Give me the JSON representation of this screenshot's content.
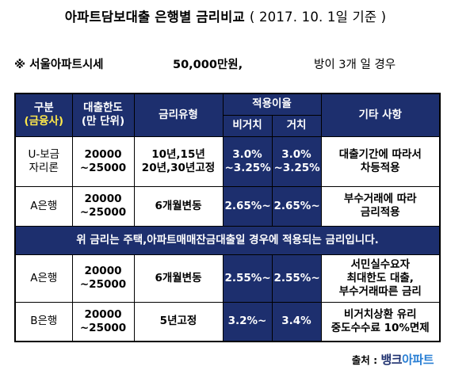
{
  "title": {
    "main": "아파트담보대출 은행별 금리비교",
    "date": "( 2017. 10. 1일 기준 )"
  },
  "note": {
    "region": "※  서울아파트시세",
    "price": "50,000만원,",
    "condition": "방이 3개 일 경우"
  },
  "table": {
    "headers": {
      "type_line1": "구분",
      "type_line2": "(금융사)",
      "limit_line1": "대출한도",
      "limit_line2": "(만 단위)",
      "rate_type": "금리유형",
      "applied_rate": "적용이율",
      "non_deferred": "비거치",
      "deferred": "거치",
      "other": "기타 사항"
    },
    "rows": [
      {
        "name_line1": "U-보금",
        "name_line2": "자리론",
        "limit_line1": "20000",
        "limit_line2": "~25000",
        "rate_line1": "10년,15년",
        "rate_line2": "20년,30년고정",
        "non_def_line1": "3.0%",
        "non_def_line2": "~3.25%",
        "def_line1": "3.0%",
        "def_line2": "~3.25%",
        "other_line1": "대출기간에 따라서",
        "other_line2": "차등적용"
      },
      {
        "name_line1": "A은행",
        "limit_line1": "20000",
        "limit_line2": "~25000",
        "rate_line1": "6개월변동",
        "non_def_line1": "2.65%~",
        "def_line1": "2.65%~",
        "other_line1": "부수거래에 따라",
        "other_line2": "금리적용"
      },
      {
        "name_line1": "A은행",
        "limit_line1": "20000",
        "limit_line2": "~25000",
        "rate_line1": "6개월변동",
        "non_def_line1": "2.55%~",
        "def_line1": "2.55%~",
        "other_line1": "서민실수요자",
        "other_line2": "최대한도 대출,",
        "other_line3": "부수거래따른 금리"
      },
      {
        "name_line1": "B은행",
        "limit_line1": "20000",
        "limit_line2": "~25000",
        "rate_line1": "5년고정",
        "non_def_line1": "3.2%~",
        "def_line1": "3.4%",
        "other_line1": "비거치상환 유리",
        "other_line2": "중도수수료 10%면제"
      }
    ],
    "banner": "위 금리는 주택,아파트매매잔금대출일 경우에 적용되는 금리입니다."
  },
  "source": {
    "label": "출처 :",
    "logo_part1": "뱅크",
    "logo_part2": "아파트"
  },
  "colors": {
    "header_bg": "#1d2f6e",
    "header_sub": "#ffe94a",
    "text": "#000000"
  }
}
